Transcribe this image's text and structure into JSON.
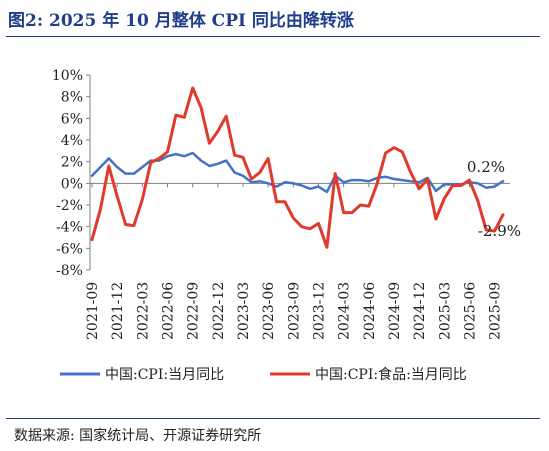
{
  "header": {
    "title": "图2:  2025 年 10 月整体 CPI 同比由降转涨"
  },
  "footer": {
    "source": "数据来源:  国家统计局、开源证券研究所"
  },
  "chart_data": {
    "type": "line",
    "title": "图2:  2025 年 10 月整体 CPI 同比由降转涨",
    "xlabel": "",
    "ylabel": "",
    "ylim": [
      -8,
      10
    ],
    "yticks": [
      -8,
      -6,
      -4,
      -2,
      0,
      2,
      4,
      6,
      8,
      10
    ],
    "ytick_labels": [
      "-8%",
      "-6%",
      "-4%",
      "-2%",
      "0%",
      "2%",
      "4%",
      "6%",
      "8%",
      "10%"
    ],
    "grid": false,
    "legend_position": "bottom",
    "x": [
      "2021-09",
      "2021-10",
      "2021-11",
      "2021-12",
      "2022-01",
      "2022-02",
      "2022-03",
      "2022-04",
      "2022-05",
      "2022-06",
      "2022-07",
      "2022-08",
      "2022-09",
      "2022-10",
      "2022-11",
      "2022-12",
      "2023-01",
      "2023-02",
      "2023-03",
      "2023-04",
      "2023-05",
      "2023-06",
      "2023-07",
      "2023-08",
      "2023-09",
      "2023-10",
      "2023-11",
      "2023-12",
      "2024-01",
      "2024-02",
      "2024-03",
      "2024-04",
      "2024-05",
      "2024-06",
      "2024-07",
      "2024-08",
      "2024-09",
      "2024-10",
      "2024-11",
      "2024-12",
      "2025-01",
      "2025-02",
      "2025-03",
      "2025-04",
      "2025-05",
      "2025-06",
      "2025-07",
      "2025-08",
      "2025-09",
      "2025-10"
    ],
    "xtick_labels": [
      "2021-09",
      "2021-12",
      "2022-03",
      "2022-06",
      "2022-09",
      "2022-12",
      "2023-03",
      "2023-06",
      "2023-09",
      "2023-12",
      "2024-03",
      "2024-06",
      "2024-09",
      "2024-12",
      "2025-03",
      "2025-06",
      "2025-09"
    ],
    "series": [
      {
        "name": "中国:CPI:当月同比",
        "color": "#4472c4",
        "values": [
          0.7,
          1.5,
          2.3,
          1.5,
          0.9,
          0.9,
          1.5,
          2.1,
          2.1,
          2.5,
          2.7,
          2.5,
          2.8,
          2.1,
          1.6,
          1.8,
          2.1,
          1.0,
          0.7,
          0.1,
          0.2,
          0.0,
          -0.3,
          0.1,
          0.0,
          -0.2,
          -0.5,
          -0.3,
          -0.8,
          0.7,
          0.1,
          0.3,
          0.3,
          0.2,
          0.5,
          0.6,
          0.4,
          0.3,
          0.2,
          0.1,
          0.5,
          -0.7,
          -0.1,
          -0.1,
          -0.1,
          0.1,
          0.0,
          -0.4,
          -0.3,
          0.2
        ]
      },
      {
        "name": "中国:CPI:食品:当月同比",
        "color": "#e03a2a",
        "values": [
          -5.2,
          -2.4,
          1.6,
          -1.2,
          -3.8,
          -3.9,
          -1.5,
          1.9,
          2.3,
          2.9,
          6.3,
          6.1,
          8.8,
          7.0,
          3.7,
          4.8,
          6.2,
          2.6,
          2.4,
          0.4,
          1.0,
          2.3,
          -1.7,
          -1.7,
          -3.2,
          -4.0,
          -4.2,
          -3.7,
          -5.9,
          0.9,
          -2.7,
          -2.7,
          -2.0,
          -2.1,
          0.0,
          2.8,
          3.3,
          2.9,
          1.0,
          -0.5,
          0.4,
          -3.3,
          -1.4,
          -0.2,
          -0.2,
          0.3,
          -1.6,
          -4.3,
          -4.4,
          -2.9
        ]
      }
    ],
    "annotations": [
      {
        "text": "0.2%",
        "series": 0,
        "x": "2025-10"
      },
      {
        "text": "-2.9%",
        "series": 1,
        "x": "2025-10"
      }
    ]
  }
}
